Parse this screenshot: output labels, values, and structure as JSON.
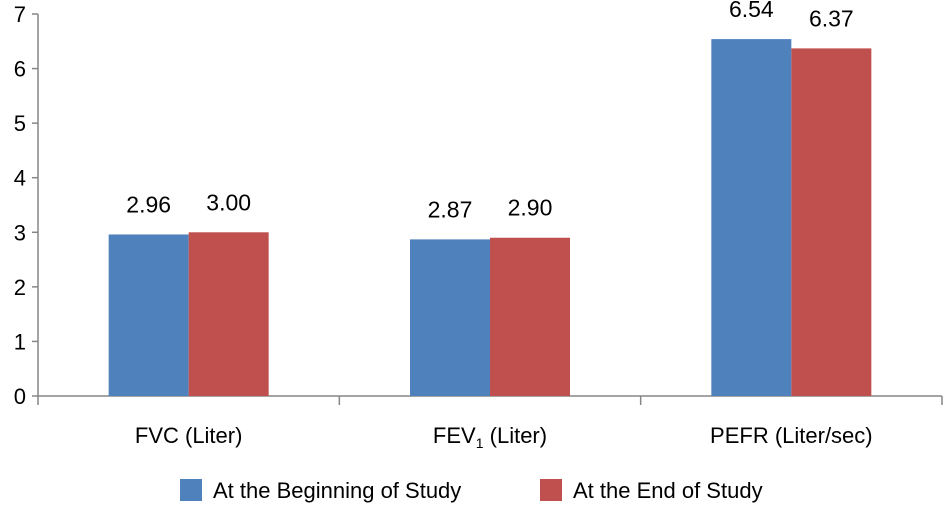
{
  "chart_data": {
    "type": "bar",
    "categories": [
      {
        "label": "FVC (Liter)",
        "parts": [
          {
            "text": "FVC (Liter)",
            "sub": false
          }
        ]
      },
      {
        "label": "FEV1 (Liter)",
        "parts": [
          {
            "text": "FEV",
            "sub": false
          },
          {
            "text": "1",
            "sub": true
          },
          {
            "text": " (Liter)",
            "sub": false
          }
        ]
      },
      {
        "label": "PEFR (Liter/sec)",
        "parts": [
          {
            "text": "PEFR (Liter/sec)",
            "sub": false
          }
        ]
      }
    ],
    "series": [
      {
        "name": "At the Beginning of Study",
        "color": "#4F81BD",
        "values": [
          2.96,
          2.87,
          6.54
        ],
        "labels": [
          "2.96",
          "2.87",
          "6.54"
        ]
      },
      {
        "name": "At the End of Study",
        "color": "#C0504D",
        "values": [
          3.0,
          2.9,
          6.37
        ],
        "labels": [
          "3.00",
          "2.90",
          "6.37"
        ]
      }
    ],
    "ylim": [
      0,
      7
    ],
    "yticks": [
      "0",
      "1",
      "2",
      "3",
      "4",
      "5",
      "6",
      "7"
    ],
    "grid": false,
    "legend_position": "bottom",
    "title": "",
    "xlabel": "",
    "ylabel": ""
  }
}
